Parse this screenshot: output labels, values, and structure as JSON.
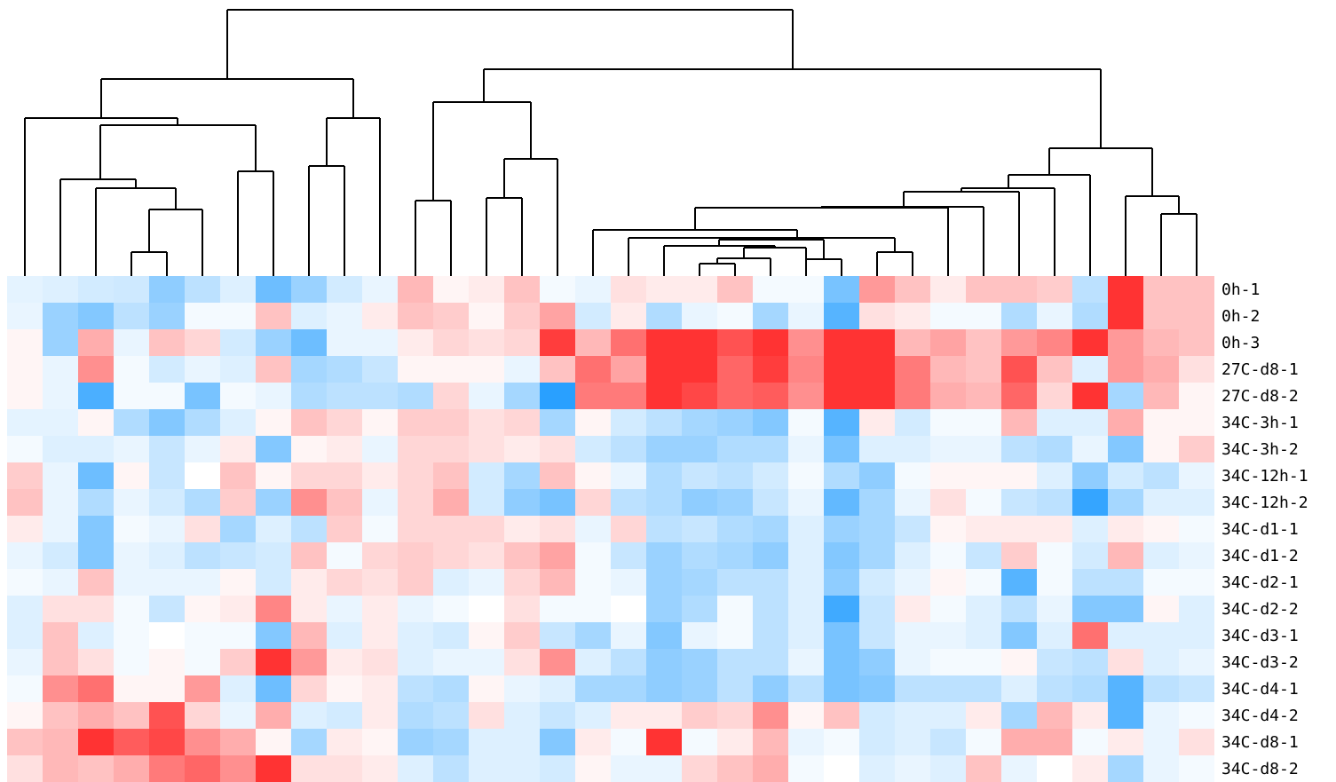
{
  "chart_data": {
    "type": "heatmap",
    "title": "",
    "xlabel": "",
    "ylabel": "",
    "rows": [
      "0h-1",
      "0h-2",
      "0h-3",
      "27C-d8-1",
      "27C-d8-2",
      "34C-3h-1",
      "34C-3h-2",
      "34C-12h-1",
      "34C-12h-2",
      "34C-d1-1",
      "34C-d1-2",
      "34C-d2-1",
      "34C-d2-2",
      "34C-d3-1",
      "34C-d3-2",
      "34C-d4-1",
      "34C-d4-2",
      "34C-d8-1",
      "34C-d8-2"
    ],
    "columns_count": 34,
    "value_scale": "diverging: blue (low, -1) - white (0) - red (high, +1)",
    "colors": {
      "low": "#1e9bff",
      "mid": "#ffffff",
      "high": "#ff3333"
    },
    "values": [
      [
        -0.12,
        -0.15,
        -0.2,
        -0.22,
        -0.5,
        -0.3,
        -0.15,
        -0.65,
        -0.45,
        -0.2,
        -0.1,
        0.35,
        0.05,
        0.1,
        0.3,
        -0.05,
        -0.1,
        0.15,
        0.1,
        0.1,
        0.3,
        -0.05,
        -0.05,
        -0.6,
        0.5,
        0.3,
        0.1,
        0.3,
        0.3,
        0.25,
        -0.3,
        1.0,
        0.3,
        0.3
      ],
      [
        -0.1,
        -0.45,
        -0.55,
        -0.3,
        -0.45,
        -0.05,
        -0.05,
        0.3,
        -0.15,
        -0.1,
        0.1,
        0.3,
        0.25,
        0.05,
        0.25,
        0.45,
        -0.2,
        0.1,
        -0.35,
        -0.1,
        -0.05,
        -0.4,
        -0.1,
        -0.75,
        0.15,
        0.1,
        -0.05,
        -0.05,
        -0.35,
        -0.1,
        -0.35,
        1.0,
        0.3,
        0.3
      ],
      [
        0.05,
        -0.45,
        0.4,
        -0.1,
        0.3,
        0.2,
        -0.2,
        -0.45,
        -0.65,
        -0.1,
        -0.1,
        0.1,
        0.2,
        0.15,
        0.2,
        0.95,
        0.35,
        0.7,
        1.0,
        1.0,
        0.85,
        1.0,
        0.55,
        1.0,
        1.0,
        0.35,
        0.45,
        0.3,
        0.5,
        0.6,
        1.0,
        0.5,
        0.35,
        0.3
      ],
      [
        0.05,
        -0.1,
        0.55,
        -0.05,
        -0.2,
        -0.1,
        -0.15,
        0.3,
        -0.4,
        -0.35,
        -0.25,
        0.05,
        0.05,
        0.05,
        -0.1,
        0.3,
        0.7,
        0.45,
        1.0,
        1.0,
        0.75,
        0.95,
        0.6,
        1.0,
        1.0,
        0.65,
        0.35,
        0.3,
        0.85,
        0.3,
        -0.15,
        0.5,
        0.4,
        0.15
      ],
      [
        0.05,
        -0.1,
        -0.8,
        -0.05,
        -0.05,
        -0.6,
        -0.05,
        -0.1,
        -0.35,
        -0.3,
        -0.3,
        -0.35,
        0.2,
        -0.1,
        -0.4,
        -0.95,
        0.65,
        0.65,
        1.0,
        0.9,
        0.75,
        0.8,
        0.55,
        1.0,
        1.0,
        0.65,
        0.4,
        0.35,
        0.75,
        0.2,
        1.0,
        -0.4,
        0.35,
        0.05
      ],
      [
        -0.12,
        -0.12,
        0.05,
        -0.35,
        -0.55,
        -0.35,
        -0.15,
        0.05,
        0.3,
        0.2,
        0.05,
        0.25,
        0.25,
        0.15,
        0.2,
        -0.4,
        0.05,
        -0.2,
        -0.3,
        -0.4,
        -0.45,
        -0.55,
        -0.05,
        -0.75,
        0.1,
        -0.2,
        -0.05,
        -0.05,
        0.35,
        -0.15,
        -0.15,
        0.4,
        0.05,
        0.05
      ],
      [
        -0.05,
        -0.15,
        -0.15,
        -0.1,
        -0.25,
        -0.1,
        0.1,
        -0.55,
        0.05,
        0.1,
        -0.1,
        0.2,
        0.2,
        0.15,
        0.1,
        0.15,
        -0.2,
        -0.3,
        -0.45,
        -0.45,
        -0.35,
        -0.35,
        -0.1,
        -0.6,
        -0.15,
        -0.15,
        -0.1,
        -0.1,
        -0.3,
        -0.35,
        -0.1,
        -0.55,
        0.05,
        0.25
      ],
      [
        0.25,
        -0.1,
        -0.65,
        0.05,
        -0.25,
        0.0,
        0.3,
        0.05,
        0.2,
        0.2,
        0.1,
        0.2,
        0.3,
        -0.2,
        -0.4,
        0.3,
        0.05,
        -0.1,
        -0.35,
        -0.25,
        -0.3,
        -0.2,
        -0.05,
        -0.35,
        -0.5,
        -0.05,
        0.05,
        0.05,
        0.05,
        -0.15,
        -0.5,
        -0.2,
        -0.3,
        -0.1
      ],
      [
        0.3,
        -0.1,
        -0.35,
        -0.1,
        -0.2,
        -0.35,
        0.25,
        -0.45,
        0.55,
        0.3,
        -0.1,
        0.2,
        0.4,
        -0.2,
        -0.5,
        -0.6,
        0.2,
        -0.3,
        -0.35,
        -0.5,
        -0.45,
        -0.25,
        -0.1,
        -0.7,
        -0.4,
        -0.1,
        0.15,
        -0.05,
        -0.25,
        -0.3,
        -0.9,
        -0.4,
        -0.15,
        -0.15
      ],
      [
        0.1,
        -0.1,
        -0.55,
        -0.05,
        -0.1,
        0.15,
        -0.4,
        -0.15,
        -0.3,
        0.25,
        -0.05,
        0.2,
        0.2,
        0.2,
        0.1,
        0.15,
        -0.1,
        0.2,
        -0.3,
        -0.25,
        -0.35,
        -0.4,
        -0.15,
        -0.45,
        -0.4,
        -0.25,
        0.05,
        0.1,
        0.1,
        0.1,
        -0.15,
        0.1,
        0.05,
        -0.05
      ],
      [
        -0.1,
        -0.2,
        -0.55,
        -0.1,
        -0.15,
        -0.3,
        -0.25,
        -0.2,
        0.3,
        -0.05,
        0.2,
        0.25,
        0.2,
        0.15,
        0.3,
        0.45,
        -0.05,
        -0.25,
        -0.45,
        -0.35,
        -0.4,
        -0.5,
        -0.15,
        -0.55,
        -0.4,
        -0.15,
        -0.05,
        -0.25,
        0.25,
        -0.05,
        -0.2,
        0.35,
        -0.15,
        -0.1
      ],
      [
        -0.05,
        -0.1,
        0.3,
        -0.1,
        -0.1,
        -0.1,
        0.05,
        -0.2,
        0.1,
        0.2,
        0.15,
        0.25,
        -0.15,
        -0.1,
        0.2,
        0.35,
        -0.05,
        -0.1,
        -0.45,
        -0.4,
        -0.3,
        -0.3,
        -0.15,
        -0.5,
        -0.2,
        -0.1,
        0.05,
        -0.05,
        -0.75,
        -0.05,
        -0.3,
        -0.3,
        -0.05,
        -0.05
      ],
      [
        -0.15,
        0.15,
        0.15,
        -0.05,
        -0.25,
        0.05,
        0.1,
        0.6,
        0.1,
        -0.1,
        0.1,
        -0.1,
        -0.05,
        0.0,
        0.15,
        -0.05,
        -0.05,
        0.0,
        -0.45,
        -0.35,
        -0.05,
        -0.3,
        -0.15,
        -0.85,
        -0.25,
        0.1,
        -0.05,
        -0.15,
        -0.3,
        -0.1,
        -0.55,
        -0.55,
        0.05,
        -0.15
      ],
      [
        -0.15,
        0.3,
        -0.15,
        -0.05,
        0.0,
        -0.05,
        -0.05,
        -0.55,
        0.35,
        -0.15,
        0.1,
        -0.15,
        -0.2,
        0.05,
        0.25,
        -0.25,
        -0.4,
        -0.1,
        -0.55,
        -0.1,
        -0.05,
        -0.3,
        -0.15,
        -0.6,
        -0.25,
        -0.1,
        -0.1,
        -0.15,
        -0.55,
        -0.15,
        0.7,
        -0.15,
        -0.15,
        -0.15
      ],
      [
        -0.1,
        0.3,
        0.15,
        -0.05,
        0.05,
        -0.05,
        0.25,
        1.0,
        0.5,
        0.1,
        0.15,
        -0.15,
        -0.1,
        -0.1,
        0.15,
        0.55,
        -0.15,
        -0.3,
        -0.5,
        -0.45,
        -0.3,
        -0.3,
        -0.1,
        -0.6,
        -0.5,
        -0.1,
        -0.05,
        -0.05,
        0.05,
        -0.25,
        -0.3,
        0.15,
        -0.15,
        -0.1
      ],
      [
        -0.05,
        0.55,
        0.7,
        0.05,
        0.05,
        0.5,
        -0.15,
        -0.65,
        0.2,
        0.05,
        0.1,
        -0.3,
        -0.35,
        0.05,
        -0.1,
        -0.15,
        -0.4,
        -0.4,
        -0.5,
        -0.45,
        -0.3,
        -0.5,
        -0.3,
        -0.6,
        -0.55,
        -0.3,
        -0.3,
        -0.3,
        -0.15,
        -0.3,
        -0.35,
        -0.75,
        -0.3,
        -0.25
      ],
      [
        0.05,
        0.3,
        0.4,
        0.3,
        0.85,
        0.2,
        -0.1,
        0.4,
        -0.15,
        -0.2,
        0.1,
        -0.35,
        -0.3,
        0.15,
        -0.15,
        -0.25,
        -0.15,
        0.1,
        0.1,
        0.25,
        0.2,
        0.55,
        0.05,
        0.3,
        -0.2,
        -0.15,
        -0.15,
        0.1,
        -0.4,
        0.35,
        0.1,
        -0.75,
        -0.1,
        -0.05
      ],
      [
        0.3,
        0.35,
        1.0,
        0.8,
        0.9,
        0.55,
        0.4,
        0.05,
        -0.4,
        0.1,
        0.05,
        -0.45,
        -0.4,
        -0.15,
        -0.15,
        -0.55,
        0.1,
        -0.05,
        1.0,
        -0.05,
        0.1,
        0.35,
        -0.1,
        -0.05,
        -0.2,
        -0.15,
        -0.25,
        -0.05,
        0.4,
        0.4,
        -0.05,
        0.1,
        -0.1,
        0.15
      ],
      [
        0.15,
        0.35,
        0.3,
        0.4,
        0.65,
        0.75,
        0.55,
        1.0,
        0.15,
        0.15,
        0.1,
        -0.15,
        -0.3,
        -0.15,
        -0.15,
        -0.2,
        0.05,
        -0.1,
        -0.1,
        0.2,
        0.3,
        0.4,
        -0.05,
        0.0,
        -0.15,
        -0.1,
        -0.15,
        0.3,
        -0.1,
        0.0,
        0.1,
        -0.4,
        -0.1,
        -0.05
      ]
    ]
  }
}
